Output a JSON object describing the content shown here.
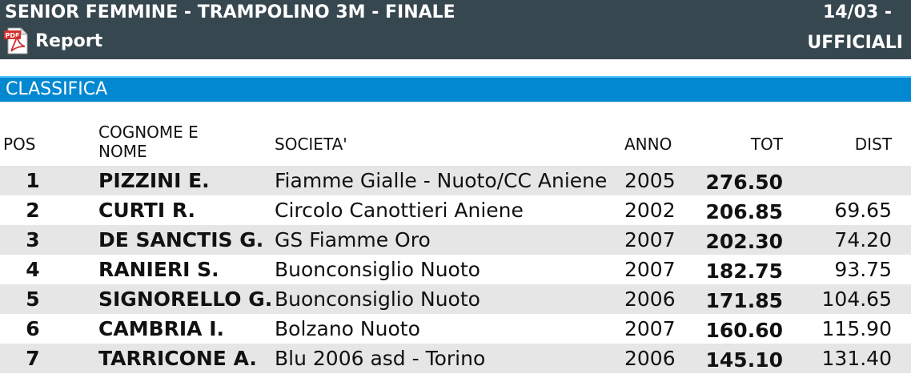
{
  "header": {
    "title": "SENIOR FEMMINE - TRAMPOLINO 3M - FINALE",
    "date": "14/03 -",
    "status": "UFFICIALI",
    "report_label": "Report",
    "pdf_icon": "pdf-file-icon",
    "background": "#37474f"
  },
  "section": {
    "title": "CLASSIFICA",
    "color": "#0288d1"
  },
  "table": {
    "columns": {
      "pos": "POS",
      "name": "COGNOME E NOME",
      "societa": "SOCIETA'",
      "anno": "ANNO",
      "tot": "TOT",
      "dist": "DIST"
    },
    "rows": [
      {
        "pos": "1",
        "name": "PIZZINI E.",
        "societa": "Fiamme Gialle - Nuoto/CC Aniene",
        "anno": "2005",
        "tot": "276.50",
        "dist": ""
      },
      {
        "pos": "2",
        "name": "CURTI R.",
        "societa": "Circolo Canottieri Aniene",
        "anno": "2002",
        "tot": "206.85",
        "dist": "69.65"
      },
      {
        "pos": "3",
        "name": "DE SANCTIS G.",
        "societa": "GS Fiamme Oro",
        "anno": "2007",
        "tot": "202.30",
        "dist": "74.20"
      },
      {
        "pos": "4",
        "name": "RANIERI S.",
        "societa": "Buonconsiglio Nuoto",
        "anno": "2007",
        "tot": "182.75",
        "dist": "93.75"
      },
      {
        "pos": "5",
        "name": "SIGNORELLO G.",
        "societa": "Buonconsiglio Nuoto",
        "anno": "2006",
        "tot": "171.85",
        "dist": "104.65"
      },
      {
        "pos": "6",
        "name": "CAMBRIA I.",
        "societa": "Bolzano Nuoto",
        "anno": "2007",
        "tot": "160.60",
        "dist": "115.90"
      },
      {
        "pos": "7",
        "name": "TARRICONE A.",
        "societa": "Blu 2006 asd - Torino",
        "anno": "2006",
        "tot": "145.10",
        "dist": "131.40"
      }
    ]
  }
}
